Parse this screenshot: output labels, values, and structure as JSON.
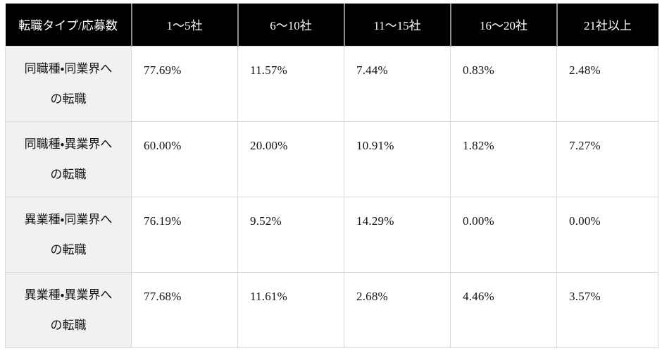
{
  "table": {
    "header": {
      "col0": "転職タイプ/応募数",
      "cols": [
        "1〜5社",
        "6〜10社",
        "11〜15社",
        "16〜20社",
        "21社以上"
      ]
    },
    "rows": [
      {
        "label_line1": "同職種・同業界へ",
        "label_line2": "の転職",
        "values": [
          "77.69%",
          "11.57%",
          "7.44%",
          "0.83%",
          "2.48%"
        ]
      },
      {
        "label_line1": "同職種・異業界へ",
        "label_line2": "の転職",
        "values": [
          "60.00%",
          "20.00%",
          "10.91%",
          "1.82%",
          "7.27%"
        ]
      },
      {
        "label_line1": "異業種・同業界へ",
        "label_line2": "の転職",
        "values": [
          "76.19%",
          "9.52%",
          "14.29%",
          "0.00%",
          "0.00%"
        ]
      },
      {
        "label_line1": "異業種・異業界へ",
        "label_line2": "の転職",
        "values": [
          "77.68%",
          "11.61%",
          "2.68%",
          "4.46%",
          "3.57%"
        ]
      }
    ],
    "colors": {
      "header_bg": "#000000",
      "header_text": "#ffffff",
      "header_divider": "#8c8c8c",
      "label_bg": "#f1f1f1",
      "border": "#d9d9d9",
      "body_text": "#141414"
    }
  },
  "chart_data": {
    "type": "table",
    "columns": [
      "転職タイプ/応募数",
      "1〜5社",
      "6〜10社",
      "11〜15社",
      "16〜20社",
      "21社以上"
    ],
    "rows": [
      [
        "同職種・同業界への転職",
        "77.69%",
        "11.57%",
        "7.44%",
        "0.83%",
        "2.48%"
      ],
      [
        "同職種・異業界への転職",
        "60.00%",
        "20.00%",
        "10.91%",
        "1.82%",
        "7.27%"
      ],
      [
        "異業種・同業界への転職",
        "76.19%",
        "9.52%",
        "14.29%",
        "0.00%",
        "0.00%"
      ],
      [
        "異業種・異業界への転職",
        "77.68%",
        "11.61%",
        "2.68%",
        "4.46%",
        "3.57%"
      ]
    ],
    "values_numeric_percent": [
      [
        77.69,
        11.57,
        7.44,
        0.83,
        2.48
      ],
      [
        60.0,
        20.0,
        10.91,
        1.82,
        7.27
      ],
      [
        76.19,
        9.52,
        14.29,
        0.0,
        0.0
      ],
      [
        77.68,
        11.61,
        2.68,
        4.46,
        3.57
      ]
    ]
  }
}
